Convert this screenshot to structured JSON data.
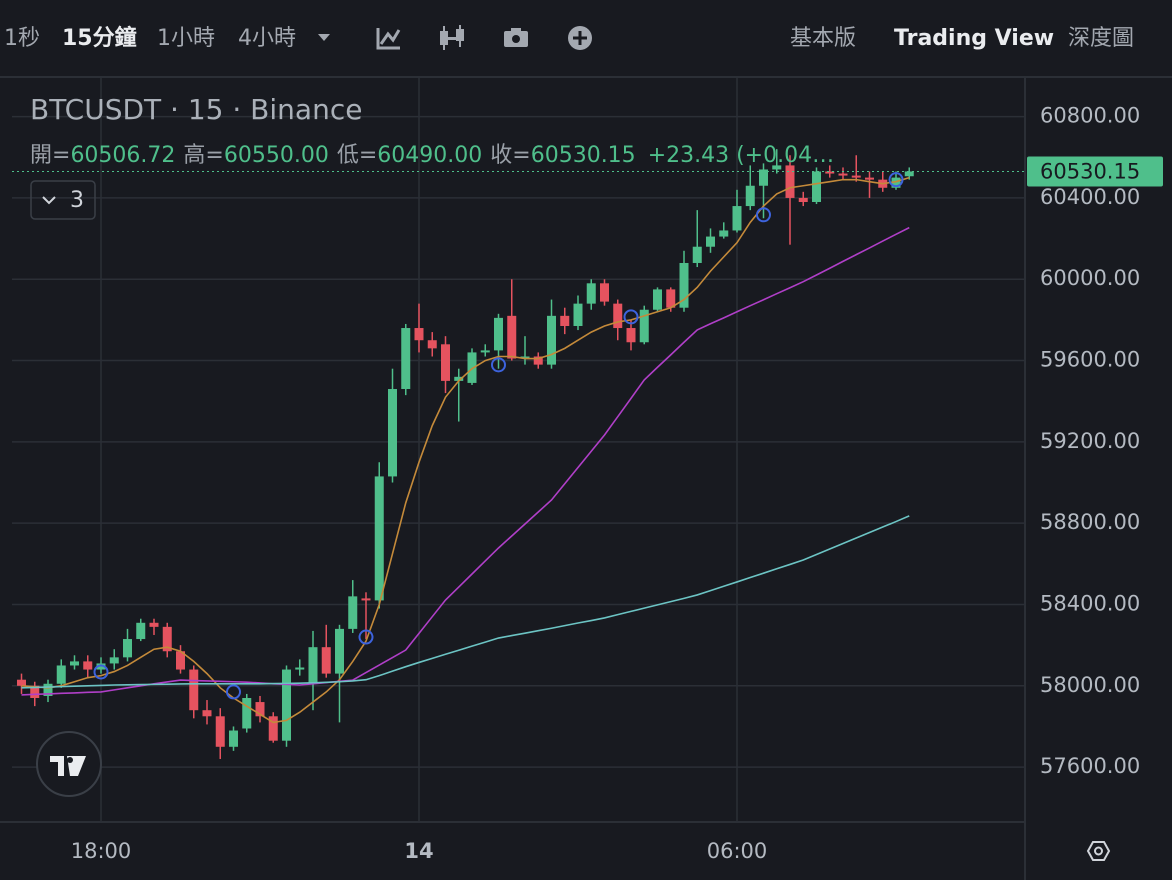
{
  "toolbar": {
    "intervals": [
      "1秒",
      "15分鐘",
      "1小時",
      "4小時"
    ],
    "views": [
      "基本版",
      "Trading View",
      "深度圖"
    ]
  },
  "chart_data": {
    "type": "candlestick",
    "title": "BTCUSDT · 15 · Binance",
    "ohlc_strip": [
      {
        "label": "開=",
        "value": "60506.72"
      },
      {
        "label": "高=",
        "value": "60550.00"
      },
      {
        "label": "低=",
        "value": "60490.00"
      },
      {
        "label": "收=",
        "value": "60530.15"
      }
    ],
    "change": "+23.43 (+0.04…",
    "indicator_count": "3",
    "categories": [
      null,
      null,
      null,
      null,
      null,
      null,
      "18:00",
      null,
      null,
      null,
      null,
      null,
      null,
      null,
      null,
      null,
      null,
      null,
      null,
      null,
      null,
      null,
      null,
      null,
      null,
      null,
      null,
      null,
      null,
      null,
      "14",
      null,
      null,
      null,
      null,
      null,
      null,
      null,
      null,
      null,
      null,
      null,
      null,
      null,
      null,
      null,
      null,
      null,
      null,
      null,
      null,
      null,
      null,
      null,
      "06:00",
      null,
      null,
      null,
      null,
      null,
      null,
      null,
      null,
      null,
      null,
      null,
      null,
      null
    ],
    "open": [
      58030,
      58000,
      57950,
      58010,
      58100,
      58120,
      58080,
      58110,
      58140,
      58230,
      58310,
      58290,
      58170,
      58080,
      57880,
      57850,
      57700,
      57790,
      57920,
      57850,
      57730,
      58080,
      58010,
      58190,
      58060,
      58280,
      58430,
      58420,
      59030,
      59460,
      59760,
      59700,
      59680,
      59500,
      59490,
      59640,
      59650,
      59820,
      59610,
      59620,
      59580,
      59820,
      59770,
      59880,
      59980,
      59880,
      59760,
      59690,
      59850,
      59950,
      59860,
      60080,
      60160,
      60210,
      60240,
      60360,
      60460,
      60540,
      60560,
      60400,
      60380,
      60530,
      60520,
      60510,
      60500,
      60490,
      60450,
      60506.72
    ],
    "high": [
      58060,
      58020,
      58030,
      58130,
      58150,
      58150,
      58140,
      58180,
      58280,
      58330,
      58330,
      58310,
      58200,
      58100,
      57930,
      57890,
      57800,
      57960,
      57950,
      57870,
      58100,
      58130,
      58270,
      58300,
      58300,
      58520,
      58460,
      59100,
      59560,
      59780,
      59880,
      59740,
      59720,
      59560,
      59660,
      59680,
      59830,
      60000,
      59720,
      59640,
      59900,
      59860,
      59920,
      60000,
      60000,
      59900,
      59800,
      59870,
      59960,
      59960,
      60140,
      60340,
      60250,
      60280,
      60440,
      60560,
      60570,
      60640,
      60610,
      60430,
      60550,
      60560,
      60550,
      60610,
      60530,
      60530,
      60530,
      60550
    ],
    "low": [
      57960,
      57900,
      57920,
      57990,
      58080,
      58040,
      58060,
      58080,
      58120,
      58220,
      58250,
      58140,
      58060,
      57840,
      57810,
      57640,
      57680,
      57770,
      57820,
      57720,
      57700,
      58050,
      57880,
      58040,
      57820,
      58260,
      58230,
      58380,
      59000,
      59430,
      59640,
      59620,
      59440,
      59300,
      59480,
      59620,
      59560,
      59600,
      59580,
      59560,
      59560,
      59730,
      59750,
      59850,
      59870,
      59700,
      59650,
      59680,
      59840,
      59840,
      59840,
      60060,
      60130,
      60200,
      60230,
      60340,
      60300,
      60520,
      60170,
      60360,
      60370,
      60500,
      60490,
      60480,
      60400,
      60430,
      60440,
      60490
    ],
    "close": [
      58000,
      57940,
      58010,
      58100,
      58120,
      58080,
      58110,
      58140,
      58230,
      58310,
      58290,
      58170,
      58080,
      57880,
      57850,
      57700,
      57780,
      57940,
      57850,
      57730,
      58080,
      58090,
      58190,
      58060,
      58280,
      58440,
      58420,
      59030,
      59460,
      59760,
      59700,
      59660,
      59500,
      59520,
      59640,
      59650,
      59810,
      59610,
      59620,
      59580,
      59820,
      59770,
      59880,
      59980,
      59890,
      59760,
      59690,
      59850,
      59950,
      59860,
      60080,
      60160,
      60210,
      60240,
      60360,
      60460,
      60540,
      60560,
      60400,
      60380,
      60530,
      60520,
      60510,
      60500,
      60490,
      60450,
      60500,
      60530.15
    ],
    "up_color": "#4fbf8b",
    "down_color": "#e5535f",
    "lines": [
      {
        "color": "#c48a3a",
        "values": [
          58000,
          57995,
          57990,
          58000,
          58020,
          58040,
          58050,
          58070,
          58100,
          58140,
          58180,
          58190,
          58170,
          58120,
          58060,
          57990,
          57940,
          57900,
          57860,
          57820,
          57830,
          57870,
          57920,
          57970,
          58030,
          58120,
          58220,
          58400,
          58650,
          58900,
          59100,
          59280,
          59420,
          59500,
          59560,
          59600,
          59620,
          59620,
          59610,
          59610,
          59630,
          59660,
          59700,
          59740,
          59770,
          59790,
          59800,
          59820,
          59840,
          59860,
          59900,
          59960,
          60040,
          60110,
          60180,
          60280,
          60360,
          60420,
          60450,
          60460,
          60470,
          60480,
          60490,
          60490,
          60480,
          60470,
          60480,
          60500
        ]
      },
      {
        "color": "#b03fc8",
        "values": [
          57955,
          57958,
          57960,
          57963,
          57965,
          57968,
          57970,
          57980,
          57990,
          58000,
          58010,
          58019,
          58028,
          58026,
          58024,
          58022,
          58020,
          58018,
          58014,
          58010,
          58007,
          58004,
          58010,
          58016,
          58022,
          58028,
          58065,
          58102,
          58139,
          58176,
          58258,
          58340,
          58422,
          58486,
          58550,
          58614,
          58678,
          58737,
          58796,
          58855,
          58914,
          58994,
          59074,
          59154,
          59234,
          59324,
          59414,
          59505,
          59567,
          59628,
          59690,
          59751,
          59781,
          59810,
          59840,
          59870,
          59899,
          59929,
          59958,
          59988,
          60021,
          60054,
          60088,
          60121,
          60154,
          60188,
          60221,
          60254
        ]
      },
      {
        "color": "#6cc4c4",
        "values": [
          57990,
          57992,
          57994,
          57996,
          57998,
          58000,
          58002,
          58004,
          58005,
          58006,
          58007,
          58008,
          58009,
          58010,
          58010,
          58010,
          58010,
          58010,
          58010,
          58011,
          58012,
          58013,
          58015,
          58017,
          58020,
          58024,
          58030,
          58050,
          58072,
          58094,
          58115,
          58135,
          58155,
          58175,
          58195,
          58215,
          58235,
          58247,
          58259,
          58271,
          58283,
          58296,
          58309,
          58321,
          58334,
          58350,
          58366,
          58382,
          58398,
          58414,
          58430,
          58447,
          58468,
          58490,
          58511,
          58533,
          58554,
          58576,
          58597,
          58619,
          58646,
          58673,
          58700,
          58727,
          58754,
          58781,
          58808,
          58836
        ]
      }
    ],
    "signals": {
      "color": "#3d63dd",
      "values": [
        null,
        null,
        null,
        null,
        null,
        null,
        58068,
        null,
        null,
        null,
        null,
        null,
        null,
        null,
        null,
        null,
        57970,
        null,
        null,
        null,
        null,
        null,
        null,
        null,
        null,
        null,
        58240,
        null,
        null,
        null,
        null,
        null,
        null,
        null,
        null,
        null,
        59579,
        null,
        null,
        null,
        null,
        null,
        null,
        null,
        null,
        null,
        59815,
        null,
        null,
        null,
        null,
        null,
        null,
        null,
        null,
        null,
        60317,
        null,
        null,
        null,
        null,
        null,
        null,
        null,
        null,
        null,
        60490,
        null
      ]
    },
    "last_price": 60530.15,
    "ylim": [
      57330,
      60990
    ],
    "yticks": [
      {
        "value": 57600,
        "label": "57600.00"
      },
      {
        "value": 58000,
        "label": "58000.00"
      },
      {
        "value": 58400,
        "label": "58400.00"
      },
      {
        "value": 58800,
        "label": "58800.00"
      },
      {
        "value": 59200,
        "label": "59200.00"
      },
      {
        "value": 59600,
        "label": "59600.00"
      },
      {
        "value": 60000,
        "label": "60000.00"
      },
      {
        "value": 60400,
        "label": "60400.00"
      },
      {
        "value": 60800,
        "label": "60800.00"
      }
    ],
    "grid": true
  }
}
